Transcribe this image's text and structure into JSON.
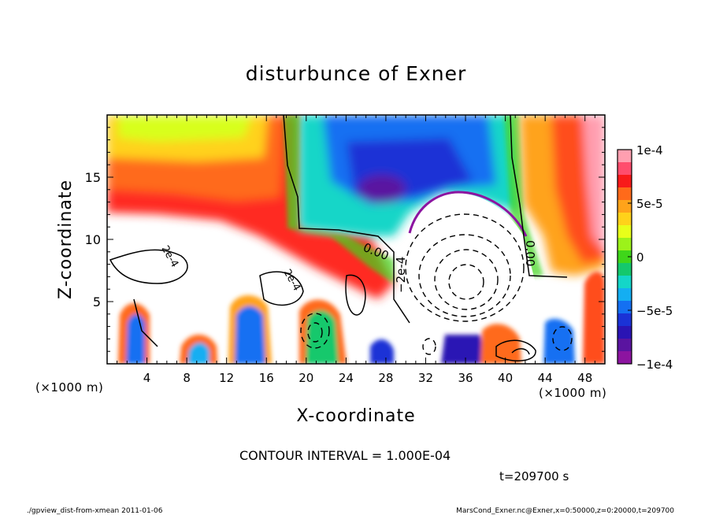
{
  "chart_data": {
    "type": "heatmap",
    "title": "disturbunce of Exner",
    "xlabel": "X-coordinate",
    "ylabel": "Z-coordinate",
    "x_unit": "(×1000 m)",
    "y_unit": "(×1000 m)",
    "xlim": [
      0,
      50
    ],
    "ylim": [
      0,
      20
    ],
    "x_ticks": [
      4,
      8,
      12,
      16,
      20,
      24,
      28,
      32,
      36,
      40,
      44,
      48
    ],
    "y_ticks": [
      5,
      10,
      15
    ],
    "colorbar": {
      "ticks": [
        "1e-4",
        "5e-5",
        "0",
        "−5e-5",
        "−1e-4"
      ],
      "colors": [
        "#ff9fb0",
        "#ff4d6d",
        "#f81a1a",
        "#ff6a1a",
        "#ffa31a",
        "#ffd21a",
        "#e8ff1a",
        "#9cf21a",
        "#3fd61a",
        "#14c86c",
        "#14d6c8",
        "#14aef2",
        "#1470f2",
        "#1a32d6",
        "#2a14b4",
        "#5a14a0",
        "#8c14a0"
      ]
    },
    "contour_labels": [
      "0.00",
      "0.00",
      "−2e-4",
      "2e-4",
      "2e-4"
    ],
    "contour_interval": "CONTOUR INTERVAL = 1.000E-04",
    "time_label": "t=209700 s",
    "footer_left": "./gpview_dist-from-xmean 2011-01-06",
    "footer_right": "MarsCond_Exner.nc@Exner,x=0:50000,z=0:20000,t=209700"
  }
}
